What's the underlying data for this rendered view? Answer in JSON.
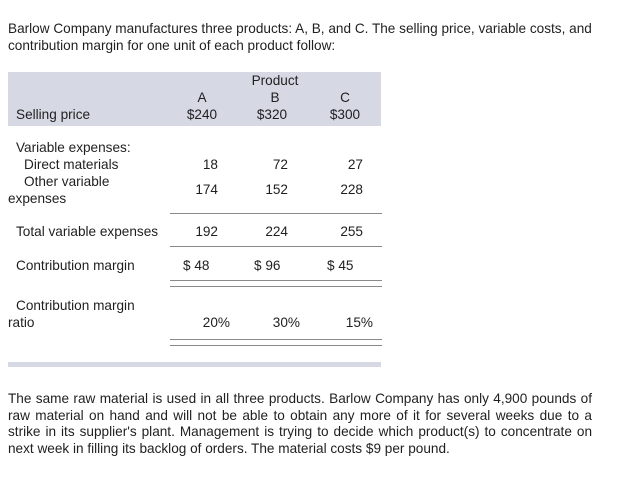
{
  "intro": "Barlow Company manufactures three products: A, B, and C. The selling price, variable costs, and contribution margin for one unit of each product follow:",
  "table": {
    "header_group": "Product",
    "columns": [
      "A",
      "B",
      "C"
    ],
    "selling_price": {
      "label": "Selling price",
      "values": [
        "$240",
        "$320",
        "$300"
      ]
    },
    "variable_expenses_heading": "Variable expenses:",
    "direct_materials": {
      "label": "Direct materials",
      "values": [
        "18",
        "72",
        "27"
      ]
    },
    "other_variable": {
      "label_line1": "Other variable",
      "label_line2": "expenses",
      "values": [
        "174",
        "152",
        "228"
      ]
    },
    "total_variable": {
      "label": "Total variable expenses",
      "values": [
        "192",
        "224",
        "255"
      ]
    },
    "contribution_margin": {
      "label": "Contribution margin",
      "values": [
        "$ 48",
        "$ 96",
        "$ 45"
      ]
    },
    "cm_ratio": {
      "label_line1": "Contribution margin",
      "label_line2": "ratio",
      "values": [
        "20%",
        "30%",
        "15%"
      ]
    }
  },
  "outro": "The same raw material is used in all three products. Barlow Company has only 4,900 pounds of raw material on hand and will not be able to obtain any more of it for several weeks due to a strike in its supplier's plant. Management is trying to decide which product(s) to concentrate on next week in filling its backlog of orders. The material costs $9 per pound.",
  "colors": {
    "header_band": "#d6d9e4",
    "rule": "#8a8a8a"
  }
}
